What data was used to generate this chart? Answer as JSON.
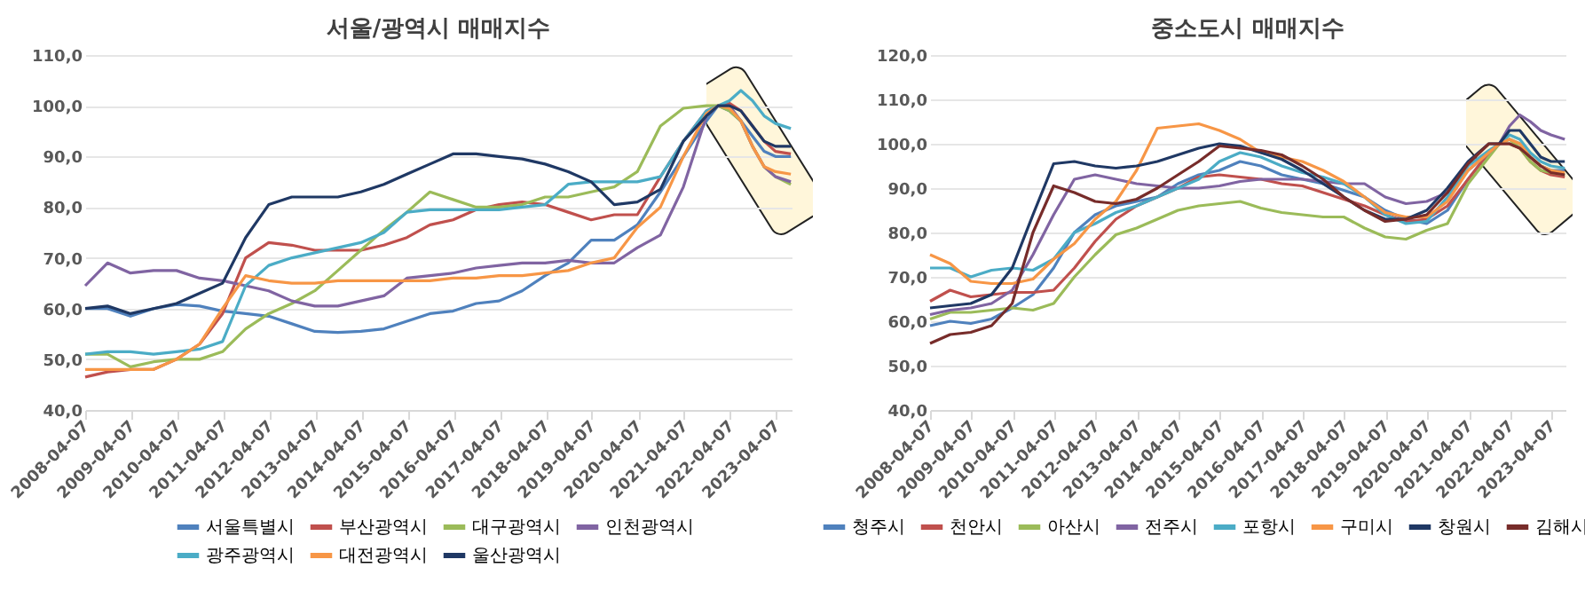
{
  "chart_data": [
    {
      "type": "line",
      "title": "서울/광역시 매매지수",
      "legend": "bottom",
      "grid": "y",
      "x": [
        "2008-04-07",
        "2008-10",
        "2009-04",
        "2009-10",
        "2010-04",
        "2010-10",
        "2011-04",
        "2011-10",
        "2012-04",
        "2012-10",
        "2013-04",
        "2013-10",
        "2014-04",
        "2014-10",
        "2015-04",
        "2015-10",
        "2016-04",
        "2016-10",
        "2017-04",
        "2017-10",
        "2018-04",
        "2018-10",
        "2019-04",
        "2019-10",
        "2020-04",
        "2020-10",
        "2021-04",
        "2021-10",
        "2022-01",
        "2022-04",
        "2022-07",
        "2022-10",
        "2023-01",
        "2023-04",
        "2023-08"
      ],
      "xlim": [
        "2008-04-07",
        "2023-08-07"
      ],
      "xticks": [
        "2008-04-07",
        "2009-04-07",
        "2010-04-07",
        "2011-04-07",
        "2012-04-07",
        "2013-04-07",
        "2014-04-07",
        "2015-04-07",
        "2016-04-07",
        "2017-04-07",
        "2018-04-07",
        "2019-04-07",
        "2020-04-07",
        "2021-04-07",
        "2022-04-07",
        "2023-04-07"
      ],
      "ylim": [
        40,
        110
      ],
      "yticks": [
        {
          "value": 40,
          "label": "40,0"
        },
        {
          "value": 50,
          "label": "50,0"
        },
        {
          "value": 60,
          "label": "60,0"
        },
        {
          "value": 70,
          "label": "70,0"
        },
        {
          "value": 80,
          "label": "80,0"
        },
        {
          "value": 90,
          "label": "90,0"
        },
        {
          "value": 100,
          "label": "100,0"
        },
        {
          "value": 110,
          "label": "110,0"
        }
      ],
      "series": [
        {
          "name": "서울특별시",
          "color": "#4f81bd",
          "values": [
            60,
            60,
            58.5,
            60,
            60.8,
            60.5,
            59.5,
            59,
            58.5,
            57,
            55.5,
            55.3,
            55.5,
            56,
            57.5,
            59,
            59.5,
            61,
            61.5,
            63.5,
            66.5,
            69,
            73.5,
            73.5,
            76.5,
            83,
            90,
            97,
            100,
            99,
            97,
            94,
            91,
            90,
            90
          ]
        },
        {
          "name": "부산광역시",
          "color": "#c0504d",
          "values": [
            46.5,
            47.5,
            48,
            48,
            50,
            53,
            59,
            70,
            73,
            72.5,
            71.5,
            71.5,
            71.5,
            72.5,
            74,
            76.5,
            77.5,
            79.5,
            80.5,
            81,
            80.5,
            79,
            77.5,
            78.5,
            78.5,
            86,
            93,
            99,
            100,
            100.5,
            99,
            96,
            93,
            91,
            90.5
          ]
        },
        {
          "name": "대구광역시",
          "color": "#9bbb59",
          "values": [
            51,
            51,
            48.5,
            49.5,
            50,
            50,
            51.5,
            56,
            59,
            61,
            63.5,
            67.5,
            71.5,
            75.5,
            79,
            83,
            81.5,
            80,
            80,
            80.5,
            82,
            82,
            83,
            84,
            87,
            96,
            99.5,
            100,
            100,
            99,
            97,
            92,
            88,
            86,
            84.5
          ]
        },
        {
          "name": "인천광역시",
          "color": "#8064a2",
          "values": [
            64.5,
            69,
            67,
            67.5,
            67.5,
            66,
            65.5,
            64.5,
            63.5,
            61.5,
            60.5,
            60.5,
            61.5,
            62.5,
            66,
            66.5,
            67,
            68,
            68.5,
            69,
            69,
            69.5,
            69,
            69,
            72,
            74.5,
            84,
            98,
            100,
            100,
            97,
            92,
            88,
            86,
            85
          ]
        },
        {
          "name": "광주광역시",
          "color": "#4bacc6",
          "values": [
            51,
            51.5,
            51.5,
            51,
            51.5,
            52,
            53.5,
            64.5,
            68.5,
            70,
            71,
            72,
            73,
            75,
            79,
            79.5,
            79.5,
            79.5,
            79.5,
            80,
            80.5,
            84.5,
            85,
            85,
            85,
            86,
            93,
            99,
            100,
            101,
            103,
            101,
            98,
            96.5,
            95.5
          ]
        },
        {
          "name": "대전광역시",
          "color": "#f79646",
          "values": [
            48,
            48,
            48,
            48,
            50,
            53,
            60,
            66.5,
            65.5,
            65,
            65,
            65.5,
            65.5,
            65.5,
            65.5,
            65.5,
            66,
            66,
            66.5,
            66.5,
            67,
            67.5,
            69,
            70,
            76,
            80,
            90,
            98.5,
            100,
            99.5,
            97,
            92,
            88,
            87,
            86.5
          ]
        },
        {
          "name": "울산광역시",
          "color": "#1f3864",
          "values": [
            60,
            60.5,
            59,
            60,
            61,
            63,
            65,
            74,
            80.5,
            82,
            82,
            82,
            83,
            84.5,
            86.5,
            88.5,
            90.5,
            90.5,
            90,
            89.5,
            88.5,
            87,
            85,
            80.5,
            81,
            83.5,
            93,
            98,
            100,
            100,
            99,
            96,
            93,
            92,
            92
          ]
        }
      ]
    },
    {
      "type": "line",
      "title": "중소도시 매매지수",
      "legend": "bottom",
      "grid": "y",
      "x": [
        "2008-04-07",
        "2008-10",
        "2009-04",
        "2009-10",
        "2010-04",
        "2010-10",
        "2011-04",
        "2011-10",
        "2012-04",
        "2012-10",
        "2013-04",
        "2013-10",
        "2014-04",
        "2014-10",
        "2015-04",
        "2015-10",
        "2016-04",
        "2016-10",
        "2017-04",
        "2017-10",
        "2018-04",
        "2018-10",
        "2019-04",
        "2019-10",
        "2020-04",
        "2020-10",
        "2021-04",
        "2021-10",
        "2022-01",
        "2022-04",
        "2022-07",
        "2022-10",
        "2023-01",
        "2023-04",
        "2023-08"
      ],
      "xlim": [
        "2008-04-07",
        "2023-08-07"
      ],
      "xticks": [
        "2008-04-07",
        "2009-04-07",
        "2010-04-07",
        "2011-04-07",
        "2012-04-07",
        "2013-04-07",
        "2014-04-07",
        "2015-04-07",
        "2016-04-07",
        "2017-04-07",
        "2018-04-07",
        "2019-04-07",
        "2020-04-07",
        "2021-04-07",
        "2022-04-07",
        "2023-04-07"
      ],
      "ylim": [
        40,
        120
      ],
      "yticks": [
        {
          "value": 40,
          "label": "40,0"
        },
        {
          "value": 50,
          "label": "50,0"
        },
        {
          "value": 60,
          "label": "60,0"
        },
        {
          "value": 70,
          "label": "70,0"
        },
        {
          "value": 80,
          "label": "80,0"
        },
        {
          "value": 90,
          "label": "90,0"
        },
        {
          "value": 100,
          "label": "100,0"
        },
        {
          "value": 110,
          "label": "110,0"
        },
        {
          "value": 120,
          "label": "120,0"
        }
      ],
      "series": [
        {
          "name": "청주시",
          "color": "#4f81bd",
          "values": [
            59,
            60,
            59.5,
            60.5,
            63,
            66,
            72,
            80,
            84,
            86,
            87,
            88,
            91,
            93,
            94,
            96,
            95,
            93,
            92,
            91,
            89.5,
            88,
            85,
            83,
            82,
            85,
            92,
            98,
            100,
            101,
            100,
            97,
            95,
            94,
            94
          ]
        },
        {
          "name": "천안시",
          "color": "#c0504d",
          "values": [
            64.5,
            67,
            65.5,
            66,
            66.5,
            66.5,
            67,
            72,
            78,
            83,
            86,
            88,
            90,
            92.5,
            93,
            92.5,
            92,
            91,
            90.5,
            89,
            87.5,
            86,
            84,
            82.5,
            83,
            86,
            92,
            98,
            100,
            100,
            99,
            96,
            94,
            93,
            92.5
          ]
        },
        {
          "name": "아산시",
          "color": "#9bbb59",
          "values": [
            60.5,
            62,
            62,
            62.5,
            63,
            62.5,
            64,
            70,
            75,
            79.5,
            81,
            83,
            85,
            86,
            86.5,
            87,
            85.5,
            84.5,
            84,
            83.5,
            83.5,
            81,
            79,
            78.5,
            80.5,
            82,
            91,
            97,
            100,
            101,
            99,
            96,
            94,
            93.5,
            93
          ]
        },
        {
          "name": "전주시",
          "color": "#8064a2",
          "values": [
            61.5,
            62.5,
            63,
            64,
            67,
            75,
            84,
            92,
            93,
            92,
            91,
            90.5,
            90,
            90,
            90.5,
            91.5,
            92,
            92,
            92,
            91.5,
            91,
            91,
            88,
            86.5,
            87,
            89,
            94,
            98,
            100,
            104,
            106.5,
            105,
            103,
            102,
            101
          ]
        },
        {
          "name": "포항시",
          "color": "#4bacc6",
          "values": [
            72,
            72,
            70,
            71.5,
            72,
            71.5,
            74,
            80,
            82,
            84.5,
            86,
            88,
            90,
            92,
            96,
            98,
            97,
            95,
            93.5,
            92.5,
            91,
            88,
            84,
            82,
            82.5,
            88,
            95,
            98.5,
            100,
            102,
            101,
            98,
            96,
            95,
            94.5
          ]
        },
        {
          "name": "구미시",
          "color": "#f79646",
          "values": [
            75,
            73,
            69,
            68.5,
            68.5,
            69.5,
            74,
            77.5,
            83,
            87,
            94,
            103.5,
            104,
            104.5,
            103,
            101,
            98,
            97,
            96,
            94,
            91.5,
            88,
            84.5,
            83.5,
            83.5,
            87,
            94,
            98,
            100,
            101,
            100,
            97,
            95,
            94,
            93.5
          ]
        },
        {
          "name": "창원시",
          "color": "#1f3864",
          "values": [
            63,
            63.5,
            64,
            66,
            72,
            84,
            95.5,
            96,
            95,
            94.5,
            95,
            96,
            97.5,
            99,
            100,
            99.5,
            98,
            96.5,
            94,
            91,
            88,
            85,
            83,
            83,
            85,
            90,
            96,
            100,
            100,
            103,
            103,
            100,
            97,
            96,
            96
          ]
        },
        {
          "name": "김해시",
          "color": "#772c2a",
          "values": [
            55,
            57,
            57.5,
            59,
            64,
            80,
            90.5,
            89,
            87,
            86.5,
            87.5,
            90,
            93,
            96,
            99.5,
            99,
            98.5,
            97.5,
            95,
            92,
            88,
            85,
            82.5,
            83,
            84,
            89,
            95.5,
            100,
            100,
            100,
            99,
            97,
            95,
            93.5,
            93
          ]
        }
      ]
    }
  ]
}
